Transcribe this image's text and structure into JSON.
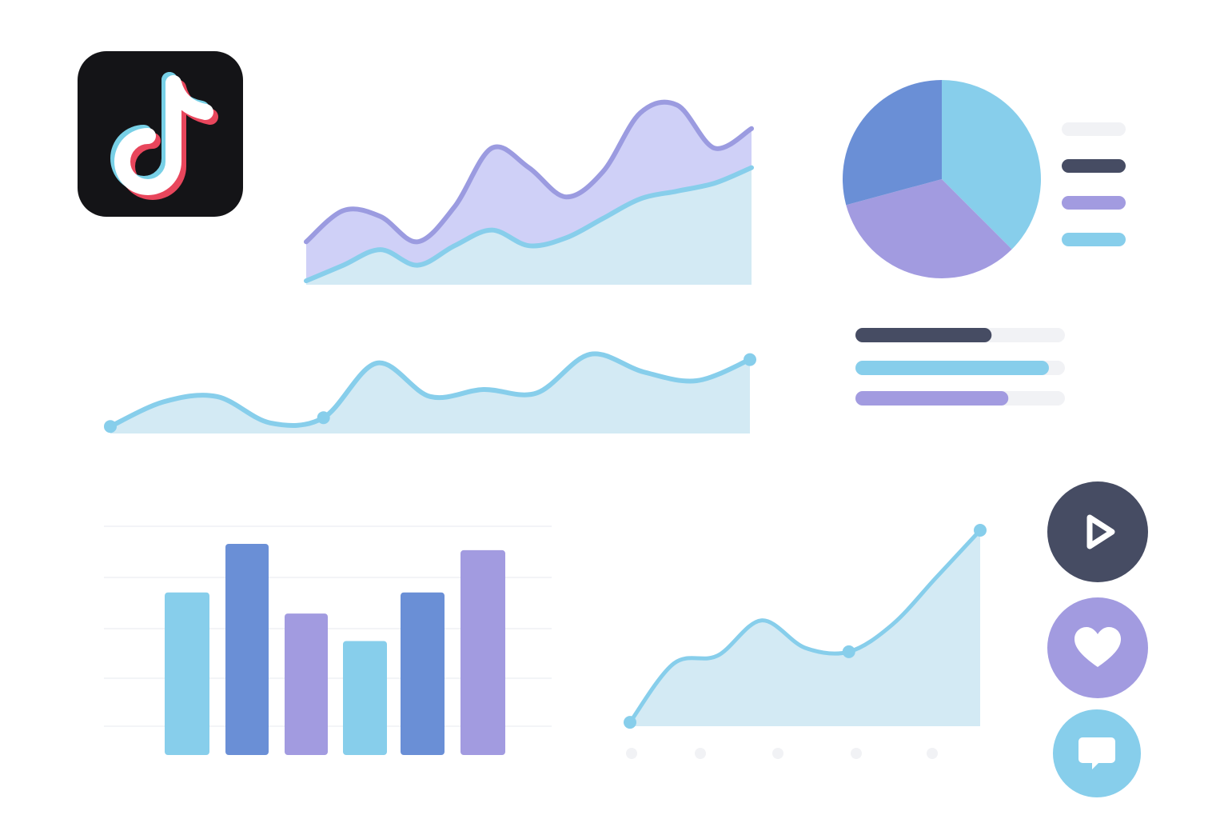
{
  "palette": {
    "blue_dark": "#6a8fd6",
    "blue_light": "#87ceeb",
    "purple": "#a29be0",
    "slate": "#464c63",
    "track": "#f1f2f5",
    "fill_light": "#d3eaf4",
    "fill_lavender": "#cfd0f7"
  },
  "icons": {
    "logo": "tiktok-logo-icon",
    "play": "play-icon",
    "like": "heart-icon",
    "comment": "comment-icon"
  },
  "chart_data": [
    {
      "type": "area",
      "title": "",
      "xlabel": "",
      "ylabel": "",
      "grid": false,
      "x": [
        0,
        1,
        2,
        3,
        4,
        5,
        6,
        7,
        8,
        9,
        10,
        11,
        12
      ],
      "ylim": [
        0,
        100
      ],
      "series": [
        {
          "color": "#6a8fd6",
          "values": [
            22,
            38,
            35,
            22,
            40,
            70,
            60,
            45,
            58,
            88,
            92,
            70,
            80
          ]
        },
        {
          "color": "#87ceeb",
          "values": [
            2,
            10,
            18,
            10,
            20,
            28,
            20,
            24,
            34,
            44,
            48,
            52,
            60
          ]
        }
      ]
    },
    {
      "type": "pie",
      "title": "",
      "legend": "right",
      "slices": [
        {
          "value": 37.5,
          "color": "#87ceeb"
        },
        {
          "value": 33.3,
          "color": "#a29be0"
        },
        {
          "value": 29.2,
          "color": "#6a8fd6"
        }
      ]
    },
    {
      "type": "line",
      "title": "",
      "grid": false,
      "x": [
        0,
        1,
        2,
        3,
        4,
        5,
        6,
        7,
        8,
        9,
        10,
        11,
        12
      ],
      "ylim": [
        0,
        100
      ],
      "markers_at": [
        0,
        4,
        12
      ],
      "series": [
        {
          "color": "#87ceeb",
          "values": [
            8,
            36,
            42,
            12,
            18,
            80,
            42,
            50,
            46,
            90,
            70,
            60,
            84
          ]
        }
      ]
    },
    {
      "type": "bar",
      "title": "",
      "grid": true,
      "ylim": [
        0,
        100
      ],
      "categories": [
        "",
        "",
        "",
        "",
        "",
        ""
      ],
      "values": [
        77,
        100,
        67,
        54,
        77,
        97
      ],
      "colors": [
        "#87ceeb",
        "#6a8fd6",
        "#a29be0",
        "#87ceeb",
        "#6a8fd6",
        "#a29be0"
      ]
    },
    {
      "type": "line",
      "title": "",
      "grid": false,
      "x": [
        0,
        1,
        2,
        3,
        4,
        5,
        6,
        7,
        8
      ],
      "ylim": [
        0,
        100
      ],
      "markers_at": [
        0,
        5,
        8
      ],
      "series": [
        {
          "color": "#87ceeb",
          "values": [
            2,
            32,
            36,
            54,
            40,
            38,
            52,
            76,
            100
          ]
        }
      ]
    },
    {
      "type": "bar",
      "orientation": "horizontal",
      "title": "",
      "xlim": [
        0,
        100
      ],
      "categories": [
        "",
        "",
        ""
      ],
      "values": [
        65,
        100,
        73
      ],
      "colors": [
        "#464c63",
        "#87ceeb",
        "#a29be0"
      ]
    }
  ]
}
